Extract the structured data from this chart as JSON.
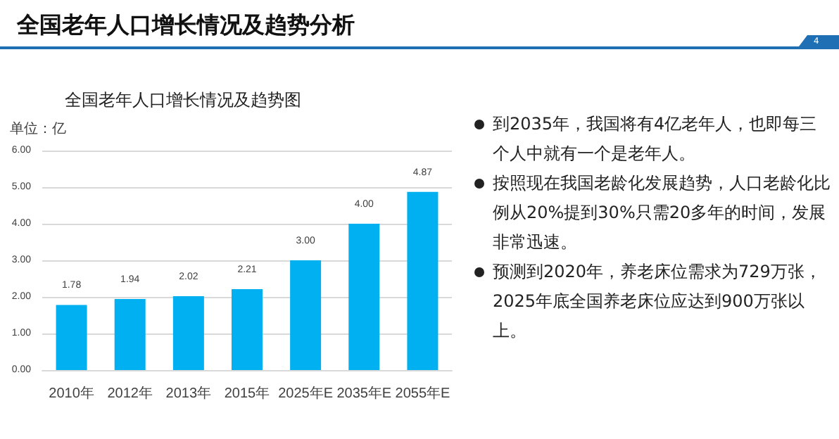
{
  "chart_data": {
    "type": "bar",
    "title": "全国老年人口增长情况及趋势分析",
    "subtitle": "全国老年人口增长情况及趋势图",
    "ylabel": "单位：亿",
    "categories": [
      "2010年",
      "2012年",
      "2013年",
      "2015年",
      "2025年E",
      "2035年E",
      "2055年E"
    ],
    "values": [
      1.78,
      1.94,
      2.02,
      2.21,
      3.0,
      4.0,
      4.87
    ],
    "color": "#00b0f0",
    "ylim": [
      0,
      6
    ],
    "yticks": [
      {
        "value": 0,
        "label": "0.00"
      },
      {
        "value": 1,
        "label": "1.00"
      },
      {
        "value": 2,
        "label": "2.00"
      },
      {
        "value": 3,
        "label": "3.00"
      },
      {
        "value": 4,
        "label": "4.00"
      },
      {
        "value": 5,
        "label": "5.00"
      },
      {
        "value": 6,
        "label": "6.00"
      }
    ],
    "grid": "y",
    "value_labels": [
      "1.78",
      "1.94",
      "2.02",
      "2.21",
      "3.00",
      "4.00",
      "4.87"
    ],
    "annotations": [
      "4",
      "到2035年，我国将有4亿老年人，也即每三个人中就有一个是老年人。",
      "按照现在我国老龄化发展趋势，人口老龄化比例从20%提到30%只需20多年的时间，发展非常迅速。",
      "预测到2020年，养老床位需求为729万张，2025年底全国养老床位应达到900万张以上。"
    ]
  }
}
